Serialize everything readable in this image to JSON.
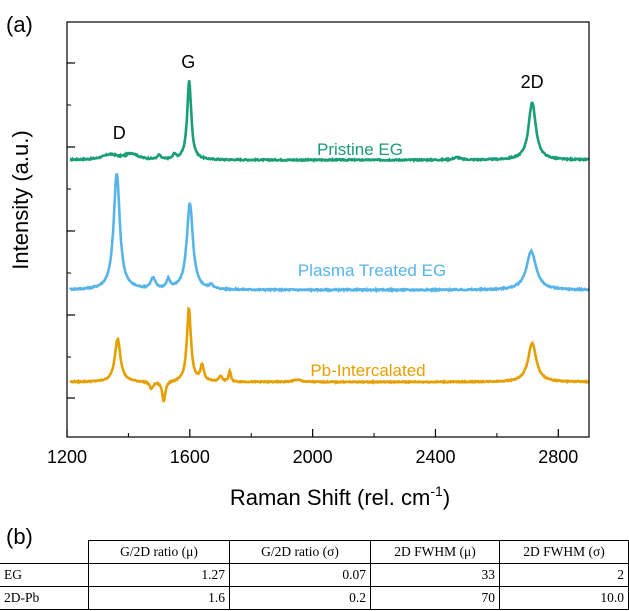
{
  "panel_a_label": "(a)",
  "panel_b_label": "(b)",
  "chart_data": {
    "type": "line",
    "title": "",
    "xlabel": "Raman Shift (rel. cm",
    "xlabel_sup": "-1",
    "xlabel_end": ")",
    "ylabel": "Intensity (a.u.)",
    "xlim": [
      1200,
      2900
    ],
    "xticks": [
      1200,
      1600,
      2000,
      2400,
      2800
    ],
    "y_tick_labels": "none",
    "legend": "inline labels",
    "annotations": [
      {
        "text": "D",
        "x": 1370
      },
      {
        "text": "G",
        "x": 1595
      },
      {
        "text": "2D",
        "x": 2715
      }
    ],
    "series": [
      {
        "name": "Pristine EG",
        "color": "#1a9e77",
        "baseline": 0.0,
        "peaks": [
          {
            "x": 1340,
            "height": 0.06,
            "width": 60
          },
          {
            "x": 1410,
            "height": 0.07,
            "width": 50
          },
          {
            "x": 1500,
            "height": 0.05,
            "width": 12
          },
          {
            "x": 1550,
            "height": 0.06,
            "width": 10
          },
          {
            "x": 1598,
            "height": 0.93,
            "width": 16
          },
          {
            "x": 2470,
            "height": 0.03,
            "width": 25
          },
          {
            "x": 2715,
            "height": 0.68,
            "width": 28
          }
        ]
      },
      {
        "name": "Plasma Treated EG",
        "color": "#56b4e9",
        "baseline": 0.0,
        "peaks": [
          {
            "x": 1362,
            "height": 1.32,
            "width": 24
          },
          {
            "x": 1480,
            "height": 0.12,
            "width": 18
          },
          {
            "x": 1530,
            "height": 0.1,
            "width": 14
          },
          {
            "x": 1600,
            "height": 0.98,
            "width": 24
          },
          {
            "x": 1670,
            "height": 0.05,
            "width": 12
          },
          {
            "x": 2712,
            "height": 0.44,
            "width": 38
          }
        ]
      },
      {
        "name": "Pb-Intercalated",
        "color": "#e69f00",
        "baseline": 0.0,
        "peaks": [
          {
            "x": 1365,
            "height": 0.6,
            "width": 22
          },
          {
            "x": 1475,
            "height": -0.1,
            "width": 14
          },
          {
            "x": 1515,
            "height": -0.28,
            "width": 12
          },
          {
            "x": 1597,
            "height": 1.02,
            "width": 16
          },
          {
            "x": 1640,
            "height": 0.22,
            "width": 14
          },
          {
            "x": 1700,
            "height": 0.08,
            "width": 12
          },
          {
            "x": 1730,
            "height": 0.15,
            "width": 8
          },
          {
            "x": 1950,
            "height": 0.03,
            "width": 30
          },
          {
            "x": 2715,
            "height": 0.54,
            "width": 32
          }
        ]
      }
    ]
  },
  "table": {
    "headers": [
      "G/2D ratio (μ)",
      "G/2D ratio (σ)",
      "2D FWHM (μ)",
      "2D FWHM (σ)"
    ],
    "rows": [
      {
        "label": "EG",
        "values": [
          "1.27",
          "0.07",
          "33",
          "2"
        ]
      },
      {
        "label": "2D-Pb",
        "values": [
          "1.6",
          "0.2",
          "70",
          "10.0"
        ]
      }
    ]
  }
}
